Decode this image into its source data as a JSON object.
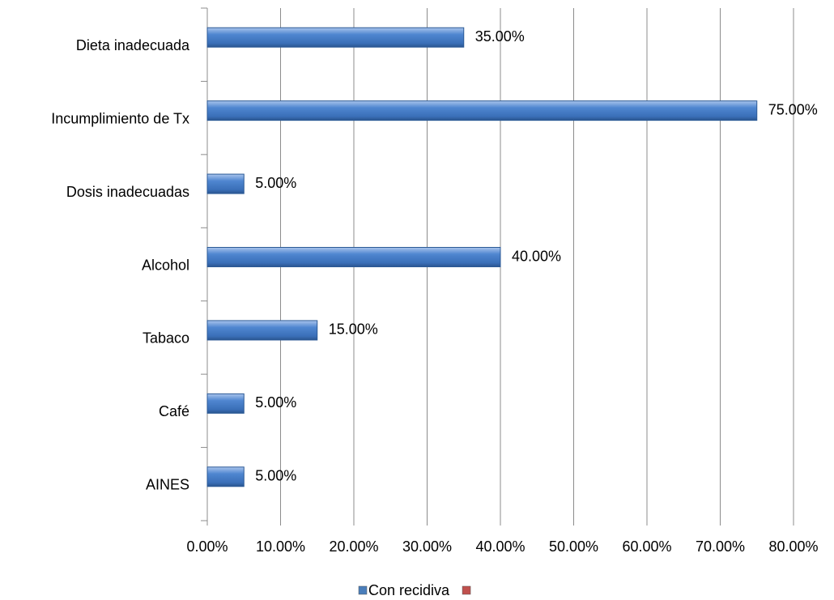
{
  "chart_data": {
    "type": "bar",
    "orientation": "horizontal",
    "categories": [
      "Dieta inadecuada",
      "Incumplimiento de Tx",
      "Dosis inadecuadas",
      "Alcohol",
      "Tabaco",
      "Café",
      "AINES"
    ],
    "series": [
      {
        "name": "Con recidiva",
        "color": "#4a7ebb",
        "values": [
          35,
          75,
          5,
          40,
          15,
          5,
          5
        ],
        "value_labels": [
          "35.00%",
          "75.00%",
          "5.00%",
          "40.00%",
          "15.00%",
          "5.00%",
          "5.00%"
        ]
      },
      {
        "color": "#c0504d",
        "values": [
          null,
          null,
          null,
          null,
          null,
          null,
          null
        ]
      }
    ],
    "xlim": [
      0,
      80
    ],
    "xticks": [
      {
        "value": 0,
        "label": "0.00%"
      },
      {
        "value": 10,
        "label": "10.00%"
      },
      {
        "value": 20,
        "label": "20.00%"
      },
      {
        "value": 30,
        "label": "30.00%"
      },
      {
        "value": 40,
        "label": "40.00%"
      },
      {
        "value": 50,
        "label": "50.00%"
      },
      {
        "value": 60,
        "label": "60.00%"
      },
      {
        "value": 70,
        "label": "70.00%"
      },
      {
        "value": 80,
        "label": "80.00%"
      }
    ],
    "grid": true,
    "legend": "bottom"
  }
}
